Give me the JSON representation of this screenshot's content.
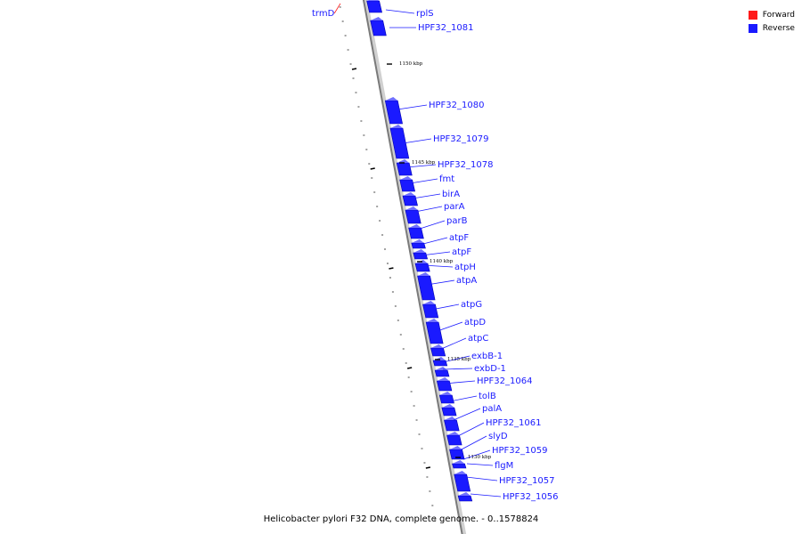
{
  "legend": {
    "forward_label": "Forward",
    "reverse_label": "Reverse",
    "forward_color": "#ff1a1a",
    "reverse_color": "#1a1aff"
  },
  "caption": "Helicobacter pylori F32 DNA, complete genome. - 0..1578824",
  "genes": [
    {
      "name": "trmD",
      "strand": "forward"
    },
    {
      "name": "rplS",
      "strand": "reverse"
    },
    {
      "name": "HPF32_1081",
      "strand": "reverse"
    },
    {
      "name": "HPF32_1080",
      "strand": "reverse"
    },
    {
      "name": "HPF32_1079",
      "strand": "reverse"
    },
    {
      "name": "HPF32_1078",
      "strand": "reverse"
    },
    {
      "name": "fmt",
      "strand": "reverse"
    },
    {
      "name": "birA",
      "strand": "reverse"
    },
    {
      "name": "parA",
      "strand": "reverse"
    },
    {
      "name": "parB",
      "strand": "reverse"
    },
    {
      "name": "atpF",
      "strand": "reverse"
    },
    {
      "name": "atpF",
      "strand": "reverse"
    },
    {
      "name": "atpH",
      "strand": "reverse"
    },
    {
      "name": "atpA",
      "strand": "reverse"
    },
    {
      "name": "atpG",
      "strand": "reverse"
    },
    {
      "name": "atpD",
      "strand": "reverse"
    },
    {
      "name": "atpC",
      "strand": "reverse"
    },
    {
      "name": "exbB-1",
      "strand": "reverse"
    },
    {
      "name": "exbD-1",
      "strand": "reverse"
    },
    {
      "name": "HPF32_1064",
      "strand": "reverse"
    },
    {
      "name": "tolB",
      "strand": "reverse"
    },
    {
      "name": "palA",
      "strand": "reverse"
    },
    {
      "name": "HPF32_1061",
      "strand": "reverse"
    },
    {
      "name": "slyD",
      "strand": "reverse"
    },
    {
      "name": "HPF32_1059",
      "strand": "reverse"
    },
    {
      "name": "flgM",
      "strand": "reverse"
    },
    {
      "name": "HPF32_1057",
      "strand": "reverse"
    },
    {
      "name": "HPF32_1056",
      "strand": "reverse"
    }
  ],
  "kbp_marks": [
    "1150 kbp",
    "1145 kbp",
    "1140 kbp",
    "1135 kbp",
    "1130 kbp"
  ]
}
